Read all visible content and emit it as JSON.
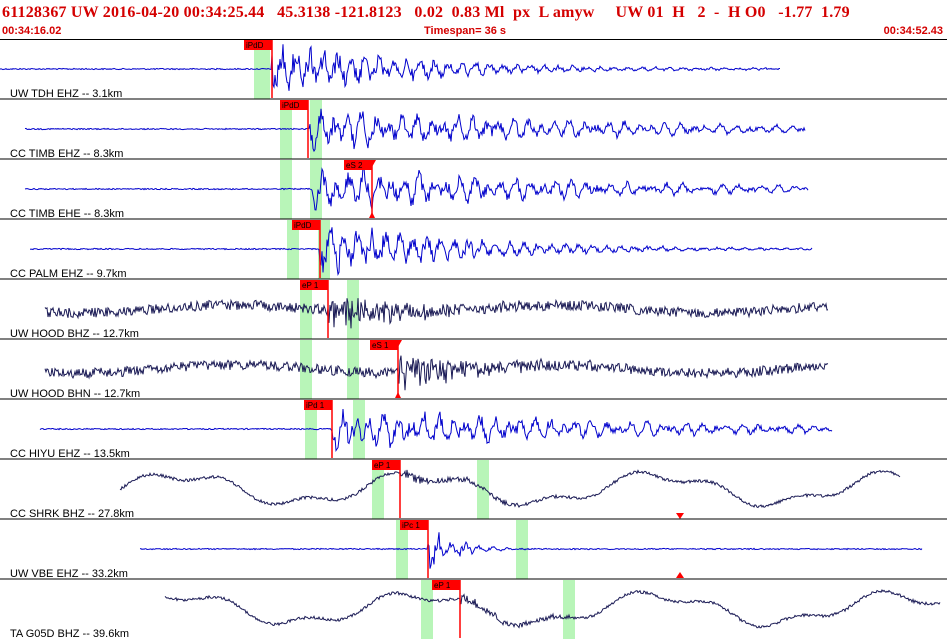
{
  "header": {
    "event_line": "61128367 UW 2016-04-20 00:34:25.44   45.3138 -121.8123   0.02  0.83 Ml  px  L amyw     UW 01  H   2  -  H O0   -1.77  1.79",
    "start_time": "00:34:16.02",
    "timespan": "Timespan=  36 s",
    "end_time": "00:34:52.43"
  },
  "colors": {
    "header_text": "#d40000",
    "trace_blue": "#0000cc",
    "trace_dark": "#1a1a55",
    "pick_red": "#ff0000",
    "pick_window_green": "#b8f5b8",
    "separator": "#000000"
  },
  "traces": [
    {
      "label": "UW TDH EHZ -- 3.1km",
      "color": "blue",
      "amp": "high",
      "pick": "iPdD",
      "pick_type": "P"
    },
    {
      "label": "CC TIMB EHZ -- 8.3km",
      "color": "blue",
      "amp": "med",
      "pick": "iPdD",
      "pick_type": "P"
    },
    {
      "label": "CC TIMB EHE -- 8.3km",
      "color": "blue",
      "amp": "med",
      "pick": "eS 2",
      "pick_type": "S"
    },
    {
      "label": "CC PALM EHZ -- 9.7km",
      "color": "blue",
      "amp": "high",
      "pick": "iPdD",
      "pick_type": "P"
    },
    {
      "label": "UW HOOD BHZ -- 12.7km",
      "color": "dark",
      "amp": "noise",
      "pick": "eP 1",
      "pick_type": "P"
    },
    {
      "label": "UW HOOD BHN -- 12.7km",
      "color": "dark",
      "amp": "noise",
      "pick": "eS 1",
      "pick_type": "S"
    },
    {
      "label": "CC HIYU EHZ -- 13.5km",
      "color": "blue",
      "amp": "med",
      "pick": "iPd 1",
      "pick_type": "P"
    },
    {
      "label": "CC SHRK BHZ -- 27.8km",
      "color": "dark",
      "amp": "long",
      "pick": "eP 1",
      "pick_type": "P"
    },
    {
      "label": "UW VBE EHZ -- 33.2km",
      "color": "blue",
      "amp": "burst",
      "pick": "iPc 1",
      "pick_type": "P"
    },
    {
      "label": "TA G05D BHZ -- 39.6km",
      "color": "dark",
      "amp": "long",
      "pick": "eP 1",
      "pick_type": "P"
    }
  ]
}
